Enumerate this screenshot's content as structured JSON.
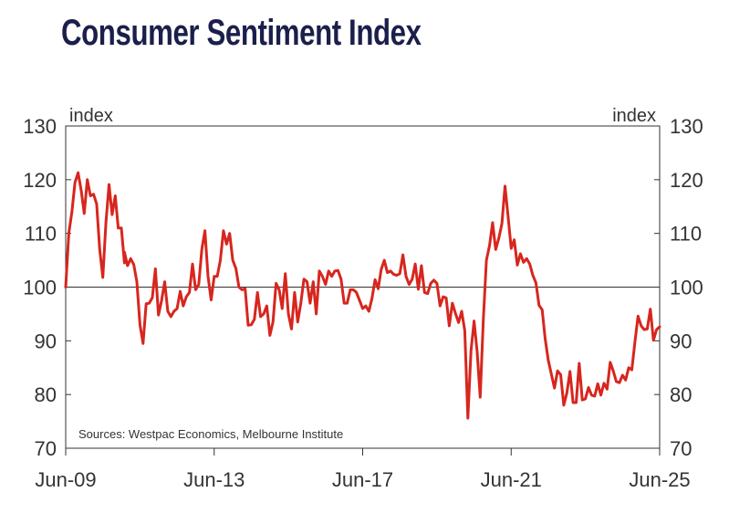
{
  "title": "Consumer Sentiment Index",
  "colors": {
    "title": "#1b1f4b",
    "series": "#d7261e",
    "axis": "#333333"
  },
  "chart_data": {
    "type": "line",
    "title": "Consumer Sentiment Index",
    "ylabel_left": "index",
    "ylabel_right": "index",
    "ylim": [
      70,
      130
    ],
    "yticks": [
      70,
      80,
      90,
      100,
      110,
      120,
      130
    ],
    "xlim": [
      "2009-06",
      "2025-06"
    ],
    "xticks": [
      "Jun-09",
      "Jun-13",
      "Jun-17",
      "Jun-21",
      "Jun-25"
    ],
    "reference_line": 100,
    "grid": false,
    "source": "Sources: Westpac Economics, Melbourne Institute",
    "series": [
      {
        "color": "#d7261e",
        "points": [
          [
            "2009-06",
            100.0
          ],
          [
            "2009-07",
            110.0
          ],
          [
            "2009-08",
            114.0
          ],
          [
            "2009-09",
            119.5
          ],
          [
            "2009-10",
            121.3
          ],
          [
            "2009-11",
            118.0
          ],
          [
            "2009-12",
            113.7
          ],
          [
            "2010-01",
            120.0
          ],
          [
            "2010-02",
            117.0
          ],
          [
            "2010-03",
            117.3
          ],
          [
            "2010-04",
            115.5
          ],
          [
            "2010-05",
            107.0
          ],
          [
            "2010-06",
            101.8
          ],
          [
            "2010-07",
            112.0
          ],
          [
            "2010-08",
            119.1
          ],
          [
            "2010-09",
            113.5
          ],
          [
            "2010-10",
            117.0
          ],
          [
            "2010-11",
            111.0
          ],
          [
            "2010-12",
            111.0
          ],
          [
            "2010-13",
            104.5
          ],
          [
            "2011-01",
            106.5
          ],
          [
            "2011-02",
            104.0
          ],
          [
            "2011-03",
            105.3
          ],
          [
            "2011-04",
            104.2
          ],
          [
            "2011-05",
            101.0
          ],
          [
            "2011-06",
            93.0
          ],
          [
            "2011-07",
            89.5
          ],
          [
            "2011-08",
            96.9
          ],
          [
            "2011-09",
            97.0
          ],
          [
            "2011-10",
            98.0
          ],
          [
            "2011-11",
            103.4
          ],
          [
            "2011-12",
            94.8
          ],
          [
            "2012-01",
            97.5
          ],
          [
            "2012-02",
            101.0
          ],
          [
            "2012-03",
            95.5
          ],
          [
            "2012-04",
            94.5
          ],
          [
            "2012-05",
            95.5
          ],
          [
            "2012-06",
            96.0
          ],
          [
            "2012-07",
            99.2
          ],
          [
            "2012-08",
            96.5
          ],
          [
            "2012-09",
            98.2
          ],
          [
            "2012-10",
            99.0
          ],
          [
            "2012-11",
            104.3
          ],
          [
            "2012-12",
            99.5
          ],
          [
            "2013-01",
            100.5
          ],
          [
            "2013-02",
            107.0
          ],
          [
            "2013-03",
            110.5
          ],
          [
            "2013-04",
            102.0
          ],
          [
            "2013-05",
            97.6
          ],
          [
            "2013-06",
            102.0
          ],
          [
            "2013-07",
            102.0
          ],
          [
            "2013-08",
            105.0
          ],
          [
            "2013-09",
            110.5
          ],
          [
            "2013-10",
            108.0
          ],
          [
            "2013-11",
            110.0
          ],
          [
            "2013-12",
            105.0
          ],
          [
            "2014-01",
            103.5
          ],
          [
            "2014-02",
            100.0
          ],
          [
            "2014-03",
            99.5
          ],
          [
            "2014-04",
            99.7
          ],
          [
            "2014-05",
            92.9
          ],
          [
            "2014-06",
            93.0
          ],
          [
            "2014-07",
            94.0
          ],
          [
            "2014-08",
            99.0
          ],
          [
            "2014-09",
            94.5
          ],
          [
            "2014-10",
            95.0
          ],
          [
            "2014-11",
            96.5
          ],
          [
            "2014-12",
            91.0
          ],
          [
            "2015-01",
            93.5
          ],
          [
            "2015-02",
            100.7
          ],
          [
            "2015-03",
            99.5
          ],
          [
            "2015-04",
            96.0
          ],
          [
            "2015-05",
            102.5
          ],
          [
            "2015-06",
            95.0
          ],
          [
            "2015-07",
            92.2
          ],
          [
            "2015-08",
            99.0
          ],
          [
            "2015-09",
            93.5
          ],
          [
            "2015-10",
            97.0
          ],
          [
            "2015-11",
            101.5
          ],
          [
            "2015-12",
            101.0
          ],
          [
            "2016-01",
            97.0
          ],
          [
            "2016-02",
            101.0
          ],
          [
            "2016-03",
            95.0
          ],
          [
            "2016-04",
            103.0
          ],
          [
            "2016-05",
            102.0
          ],
          [
            "2016-06",
            100.5
          ],
          [
            "2016-07",
            103.0
          ],
          [
            "2016-08",
            102.0
          ],
          [
            "2016-09",
            103.0
          ],
          [
            "2016-10",
            103.1
          ],
          [
            "2016-11",
            101.5
          ],
          [
            "2016-12",
            97.0
          ],
          [
            "2017-01",
            97.0
          ],
          [
            "2017-02",
            99.5
          ],
          [
            "2017-03",
            99.5
          ],
          [
            "2017-04",
            99.0
          ],
          [
            "2017-05",
            97.5
          ],
          [
            "2017-06",
            96.0
          ],
          [
            "2017-07",
            96.5
          ],
          [
            "2017-08",
            95.5
          ],
          [
            "2017-09",
            97.9
          ],
          [
            "2017-10",
            101.4
          ],
          [
            "2017-11",
            99.7
          ],
          [
            "2017-12",
            103.3
          ],
          [
            "2018-01",
            105.0
          ],
          [
            "2018-02",
            102.7
          ],
          [
            "2018-03",
            103.0
          ],
          [
            "2018-04",
            102.4
          ],
          [
            "2018-05",
            102.2
          ],
          [
            "2018-06",
            102.5
          ],
          [
            "2018-07",
            106.0
          ],
          [
            "2018-08",
            102.0
          ],
          [
            "2018-09",
            100.5
          ],
          [
            "2018-10",
            101.5
          ],
          [
            "2018-11",
            104.3
          ],
          [
            "2018-12",
            99.6
          ],
          [
            "2019-01",
            104.0
          ],
          [
            "2019-02",
            99.0
          ],
          [
            "2019-03",
            98.8
          ],
          [
            "2019-04",
            100.7
          ],
          [
            "2019-05",
            101.3
          ],
          [
            "2019-06",
            100.7
          ],
          [
            "2019-07",
            96.5
          ],
          [
            "2019-08",
            98.2
          ],
          [
            "2019-09",
            98.0
          ],
          [
            "2019-10",
            92.8
          ],
          [
            "2019-11",
            97.0
          ],
          [
            "2019-12",
            95.1
          ],
          [
            "2020-01",
            93.4
          ],
          [
            "2020-02",
            95.5
          ],
          [
            "2020-03",
            91.9
          ],
          [
            "2020-04",
            75.6
          ],
          [
            "2020-05",
            88.1
          ],
          [
            "2020-06",
            93.7
          ],
          [
            "2020-07",
            87.9
          ],
          [
            "2020-08",
            79.5
          ],
          [
            "2020-09",
            93.8
          ],
          [
            "2020-10",
            105.0
          ],
          [
            "2020-11",
            107.7
          ],
          [
            "2020-12",
            112.0
          ],
          [
            "2021-01",
            107.0
          ],
          [
            "2021-02",
            109.1
          ],
          [
            "2021-03",
            111.8
          ],
          [
            "2021-04",
            118.8
          ],
          [
            "2021-05",
            113.1
          ],
          [
            "2021-06",
            107.2
          ],
          [
            "2021-07",
            108.8
          ],
          [
            "2021-08",
            104.1
          ],
          [
            "2021-09",
            106.2
          ],
          [
            "2021-10",
            104.6
          ],
          [
            "2021-11",
            105.3
          ],
          [
            "2021-12",
            104.3
          ],
          [
            "2022-01",
            102.2
          ],
          [
            "2022-02",
            100.8
          ],
          [
            "2022-03",
            96.6
          ],
          [
            "2022-04",
            95.8
          ],
          [
            "2022-05",
            90.4
          ],
          [
            "2022-06",
            86.4
          ],
          [
            "2022-07",
            83.8
          ],
          [
            "2022-08",
            81.2
          ],
          [
            "2022-09",
            84.4
          ],
          [
            "2022-10",
            83.7
          ],
          [
            "2022-11",
            78.0
          ],
          [
            "2022-12",
            80.3
          ],
          [
            "2023-01",
            84.3
          ],
          [
            "2023-02",
            78.5
          ],
          [
            "2023-03",
            78.5
          ],
          [
            "2023-04",
            85.8
          ],
          [
            "2023-05",
            79.0
          ],
          [
            "2023-06",
            79.2
          ],
          [
            "2023-07",
            81.3
          ],
          [
            "2023-08",
            79.9
          ],
          [
            "2023-09",
            79.7
          ],
          [
            "2023-10",
            82.0
          ],
          [
            "2023-11",
            79.9
          ],
          [
            "2023-12",
            82.1
          ],
          [
            "2024-01",
            81.0
          ],
          [
            "2024-02",
            86.0
          ],
          [
            "2024-03",
            84.4
          ],
          [
            "2024-04",
            82.4
          ],
          [
            "2024-05",
            82.2
          ],
          [
            "2024-06",
            83.6
          ],
          [
            "2024-07",
            82.7
          ],
          [
            "2024-08",
            85.0
          ],
          [
            "2024-09",
            84.6
          ],
          [
            "2024-10",
            89.8
          ],
          [
            "2024-11",
            94.6
          ],
          [
            "2024-12",
            92.8
          ],
          [
            "2025-01",
            92.1
          ],
          [
            "2025-02",
            92.2
          ],
          [
            "2025-03",
            95.9
          ],
          [
            "2025-04",
            90.1
          ],
          [
            "2025-05",
            92.1
          ],
          [
            "2025-06",
            92.6
          ]
        ]
      }
    ]
  }
}
